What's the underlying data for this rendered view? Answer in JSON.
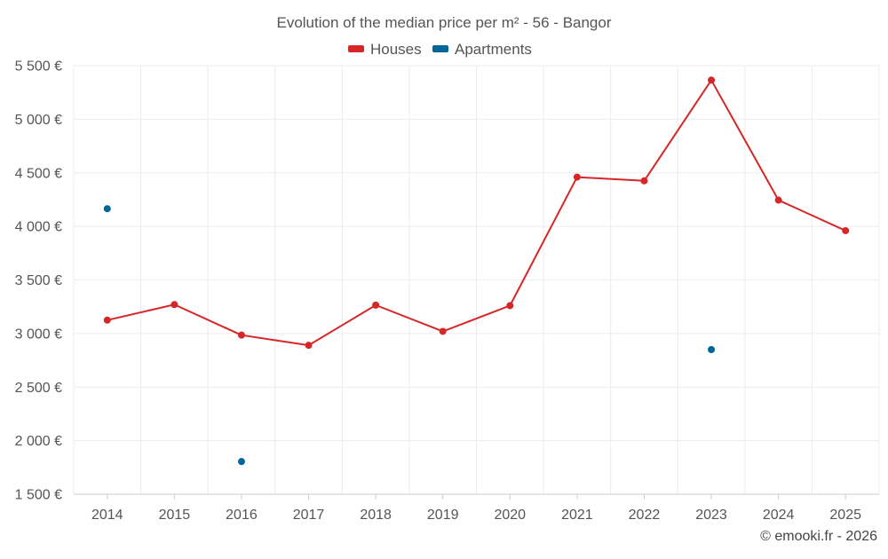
{
  "chart_data": {
    "type": "line",
    "title": "Evolution of the median price per m² - 56 - Bangor",
    "categories": [
      "2014",
      "2015",
      "2016",
      "2017",
      "2018",
      "2019",
      "2020",
      "2021",
      "2022",
      "2023",
      "2024",
      "2025"
    ],
    "series": [
      {
        "name": "Houses",
        "color": "#d62728",
        "values": [
          3125,
          3270,
          2985,
          2890,
          3265,
          3020,
          3260,
          4460,
          4425,
          5365,
          4245,
          3960
        ]
      },
      {
        "name": "Apartments",
        "color": "#006699",
        "values": [
          4165,
          null,
          1805,
          null,
          null,
          null,
          null,
          null,
          null,
          2850,
          null,
          null
        ]
      }
    ],
    "y_ticks": [
      "5 500 €",
      "5 000 €",
      "4 500 €",
      "4 000 €",
      "3 500 €",
      "3 000 €",
      "2 500 €",
      "2 000 €",
      "1 500 €"
    ],
    "y_tick_values": [
      5500,
      5000,
      4500,
      4000,
      3500,
      3000,
      2500,
      2000,
      1500
    ],
    "ylim": [
      1500,
      5500
    ],
    "legend_position": "top-center",
    "xlabel": "",
    "ylabel": ""
  },
  "credit": "© emooki.fr - 2026"
}
